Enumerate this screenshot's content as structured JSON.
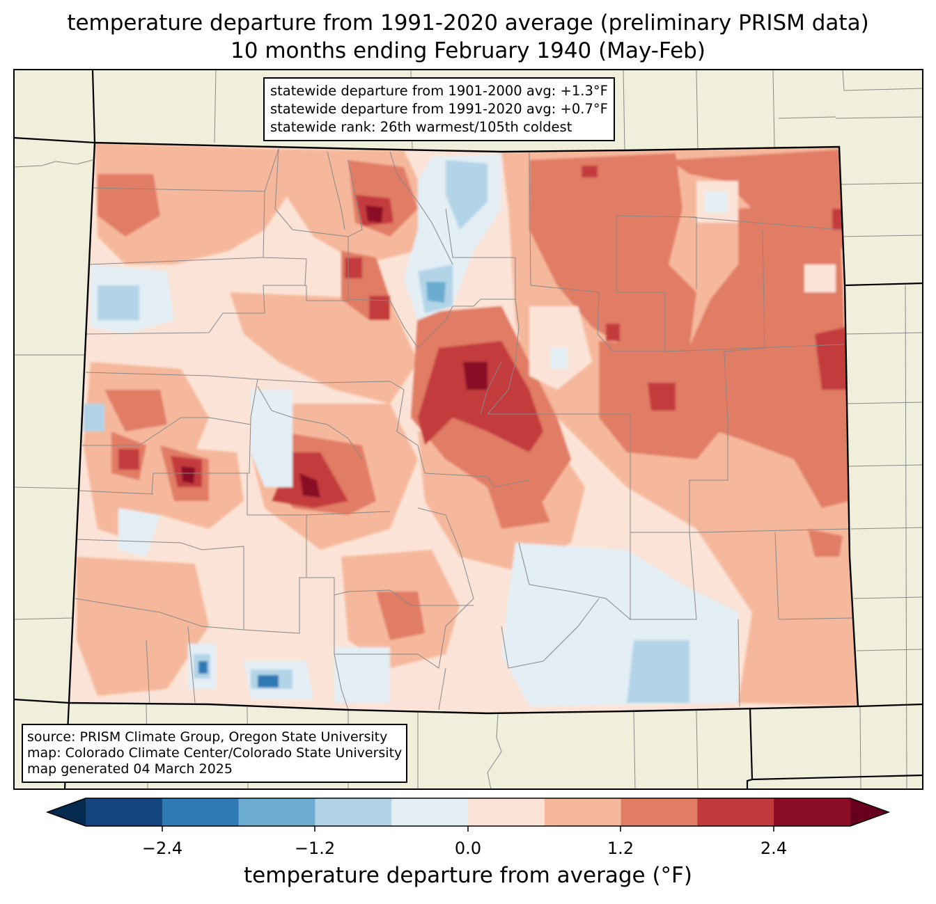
{
  "title": {
    "line1": "temperature departure from 1991-2020 average (preliminary PRISM data)",
    "line2": "10 months ending February 1940 (May-Feb)"
  },
  "stats": {
    "line1": "statewide departure from 1901-2000 avg: +1.3°F",
    "line2": "statewide departure from 1991-2020 avg: +0.7°F",
    "line3": "statewide rank: 26th warmest/105th coldest"
  },
  "source": {
    "line1": "source: PRISM Climate Group, Oregon State University",
    "line2": "map: Colorado Climate Center/Colorado State University",
    "line3": "map generated 04 March 2025"
  },
  "colorbar": {
    "label": "temperature departure from average (°F)",
    "ticks": [
      "−2.4",
      "−1.2",
      "0.0",
      "1.2",
      "2.4"
    ],
    "colors": [
      "#15457f",
      "#2f79b5",
      "#6bacd0",
      "#b2d4e7",
      "#e4eef5",
      "#fbe4d7",
      "#f6b89c",
      "#e17c65",
      "#c33a3d",
      "#8a0d25"
    ],
    "under_color": "#052a4f",
    "over_color": "#67001f"
  },
  "map_colors": {
    "land": "#efefdb",
    "state_line": "#000000",
    "county_line": "#888888"
  }
}
